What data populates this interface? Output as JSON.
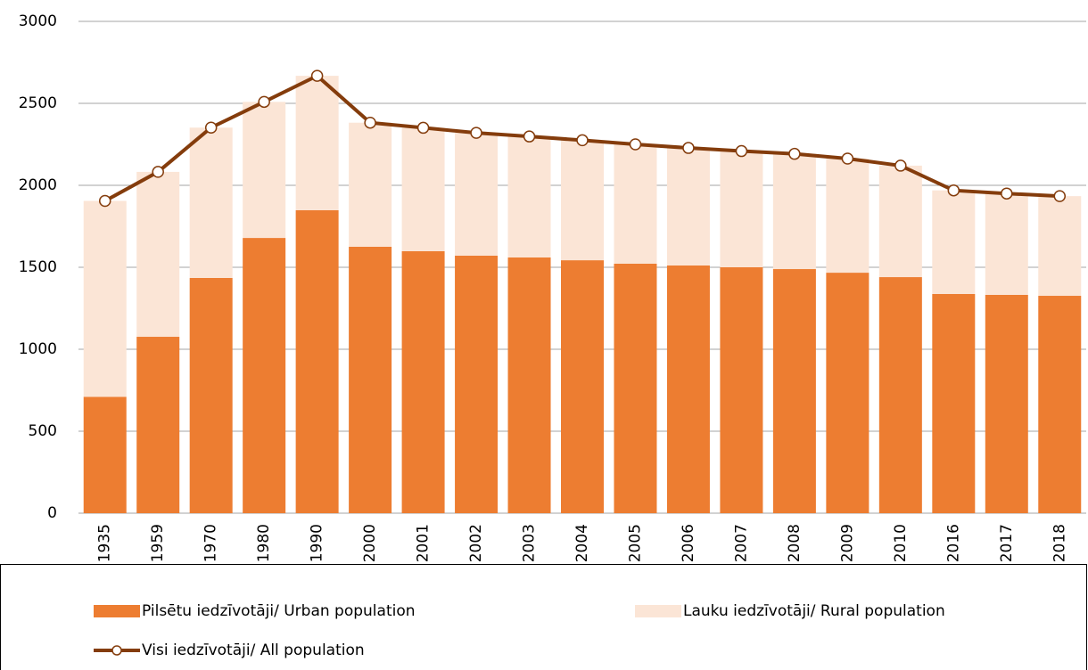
{
  "chart_data": {
    "type": "stacked_bar_line",
    "categories": [
      "1935",
      "1959",
      "1970",
      "1980",
      "1990",
      "2000",
      "2001",
      "2002",
      "2003",
      "2004",
      "2005",
      "2006",
      "2007",
      "2008",
      "2009",
      "2010",
      "2016",
      "2017",
      "2018"
    ],
    "series": [
      {
        "name": "Pilsētu iedzīvotāji/ Urban population",
        "color": "#ed7d31",
        "type": "bar",
        "values": [
          710,
          1076,
          1435,
          1679,
          1848,
          1625,
          1598,
          1571,
          1560,
          1543,
          1522,
          1511,
          1500,
          1489,
          1467,
          1440,
          1337,
          1332,
          1326
        ]
      },
      {
        "name": "Lauku iedzīvotāji/ Rural population",
        "color": "#fbe5d6",
        "type": "bar",
        "values": [
          1195,
          1006,
          917,
          830,
          820,
          757,
          753,
          749,
          738,
          732,
          728,
          717,
          709,
          703,
          696,
          680,
          632,
          618,
          608
        ]
      },
      {
        "name": "Visi iedzīvotāji/ All population",
        "color": "#843c0c",
        "type": "line",
        "values": [
          1905,
          2082,
          2352,
          2509,
          2668,
          2382,
          2351,
          2320,
          2298,
          2275,
          2250,
          2228,
          2209,
          2192,
          2163,
          2120,
          1969,
          1950,
          1934
        ]
      }
    ],
    "ylim": [
      0,
      3000
    ],
    "yticks": [
      0,
      500,
      1000,
      1500,
      2000,
      2500,
      3000
    ],
    "grid": true,
    "legend": "bottom"
  }
}
